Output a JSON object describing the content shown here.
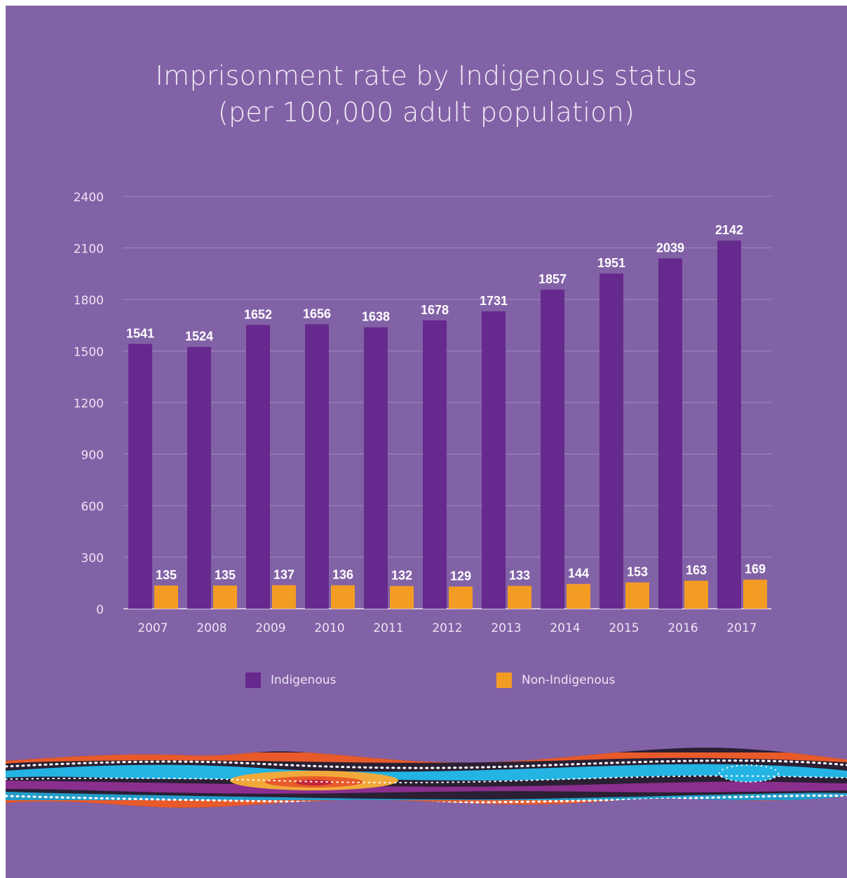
{
  "title_line1": "Imprisonment rate by Indigenous status",
  "title_line2": "(per 100,000 adult population)",
  "colors": {
    "background": "#8262a6",
    "indigenous": "#66298d",
    "non_indigenous": "#f39c24",
    "grid": "#9c82ba",
    "axis_text": "#ece4f4",
    "label_text": "#ffffff"
  },
  "legend": {
    "indigenous": "Indigenous",
    "non_indigenous": "Non-Indigenous"
  },
  "chart_data": {
    "type": "bar",
    "title": "Imprisonment rate by Indigenous status (per 100,000 adult population)",
    "categories": [
      "2007",
      "2008",
      "2009",
      "2010",
      "2011",
      "2012",
      "2013",
      "2014",
      "2015",
      "2016",
      "2017"
    ],
    "series": [
      {
        "name": "Indigenous",
        "values": [
          1541,
          1524,
          1652,
          1656,
          1638,
          1678,
          1731,
          1857,
          1951,
          2039,
          2142
        ]
      },
      {
        "name": "Non-Indigenous",
        "values": [
          135,
          135,
          137,
          136,
          132,
          129,
          133,
          144,
          153,
          163,
          169
        ]
      }
    ],
    "yticks": [
      0,
      300,
      600,
      900,
      1200,
      1500,
      1800,
      2100,
      2400
    ],
    "ylim": [
      0,
      2400
    ],
    "xlabel": "",
    "ylabel": "",
    "grid": true,
    "legend_position": "bottom"
  }
}
